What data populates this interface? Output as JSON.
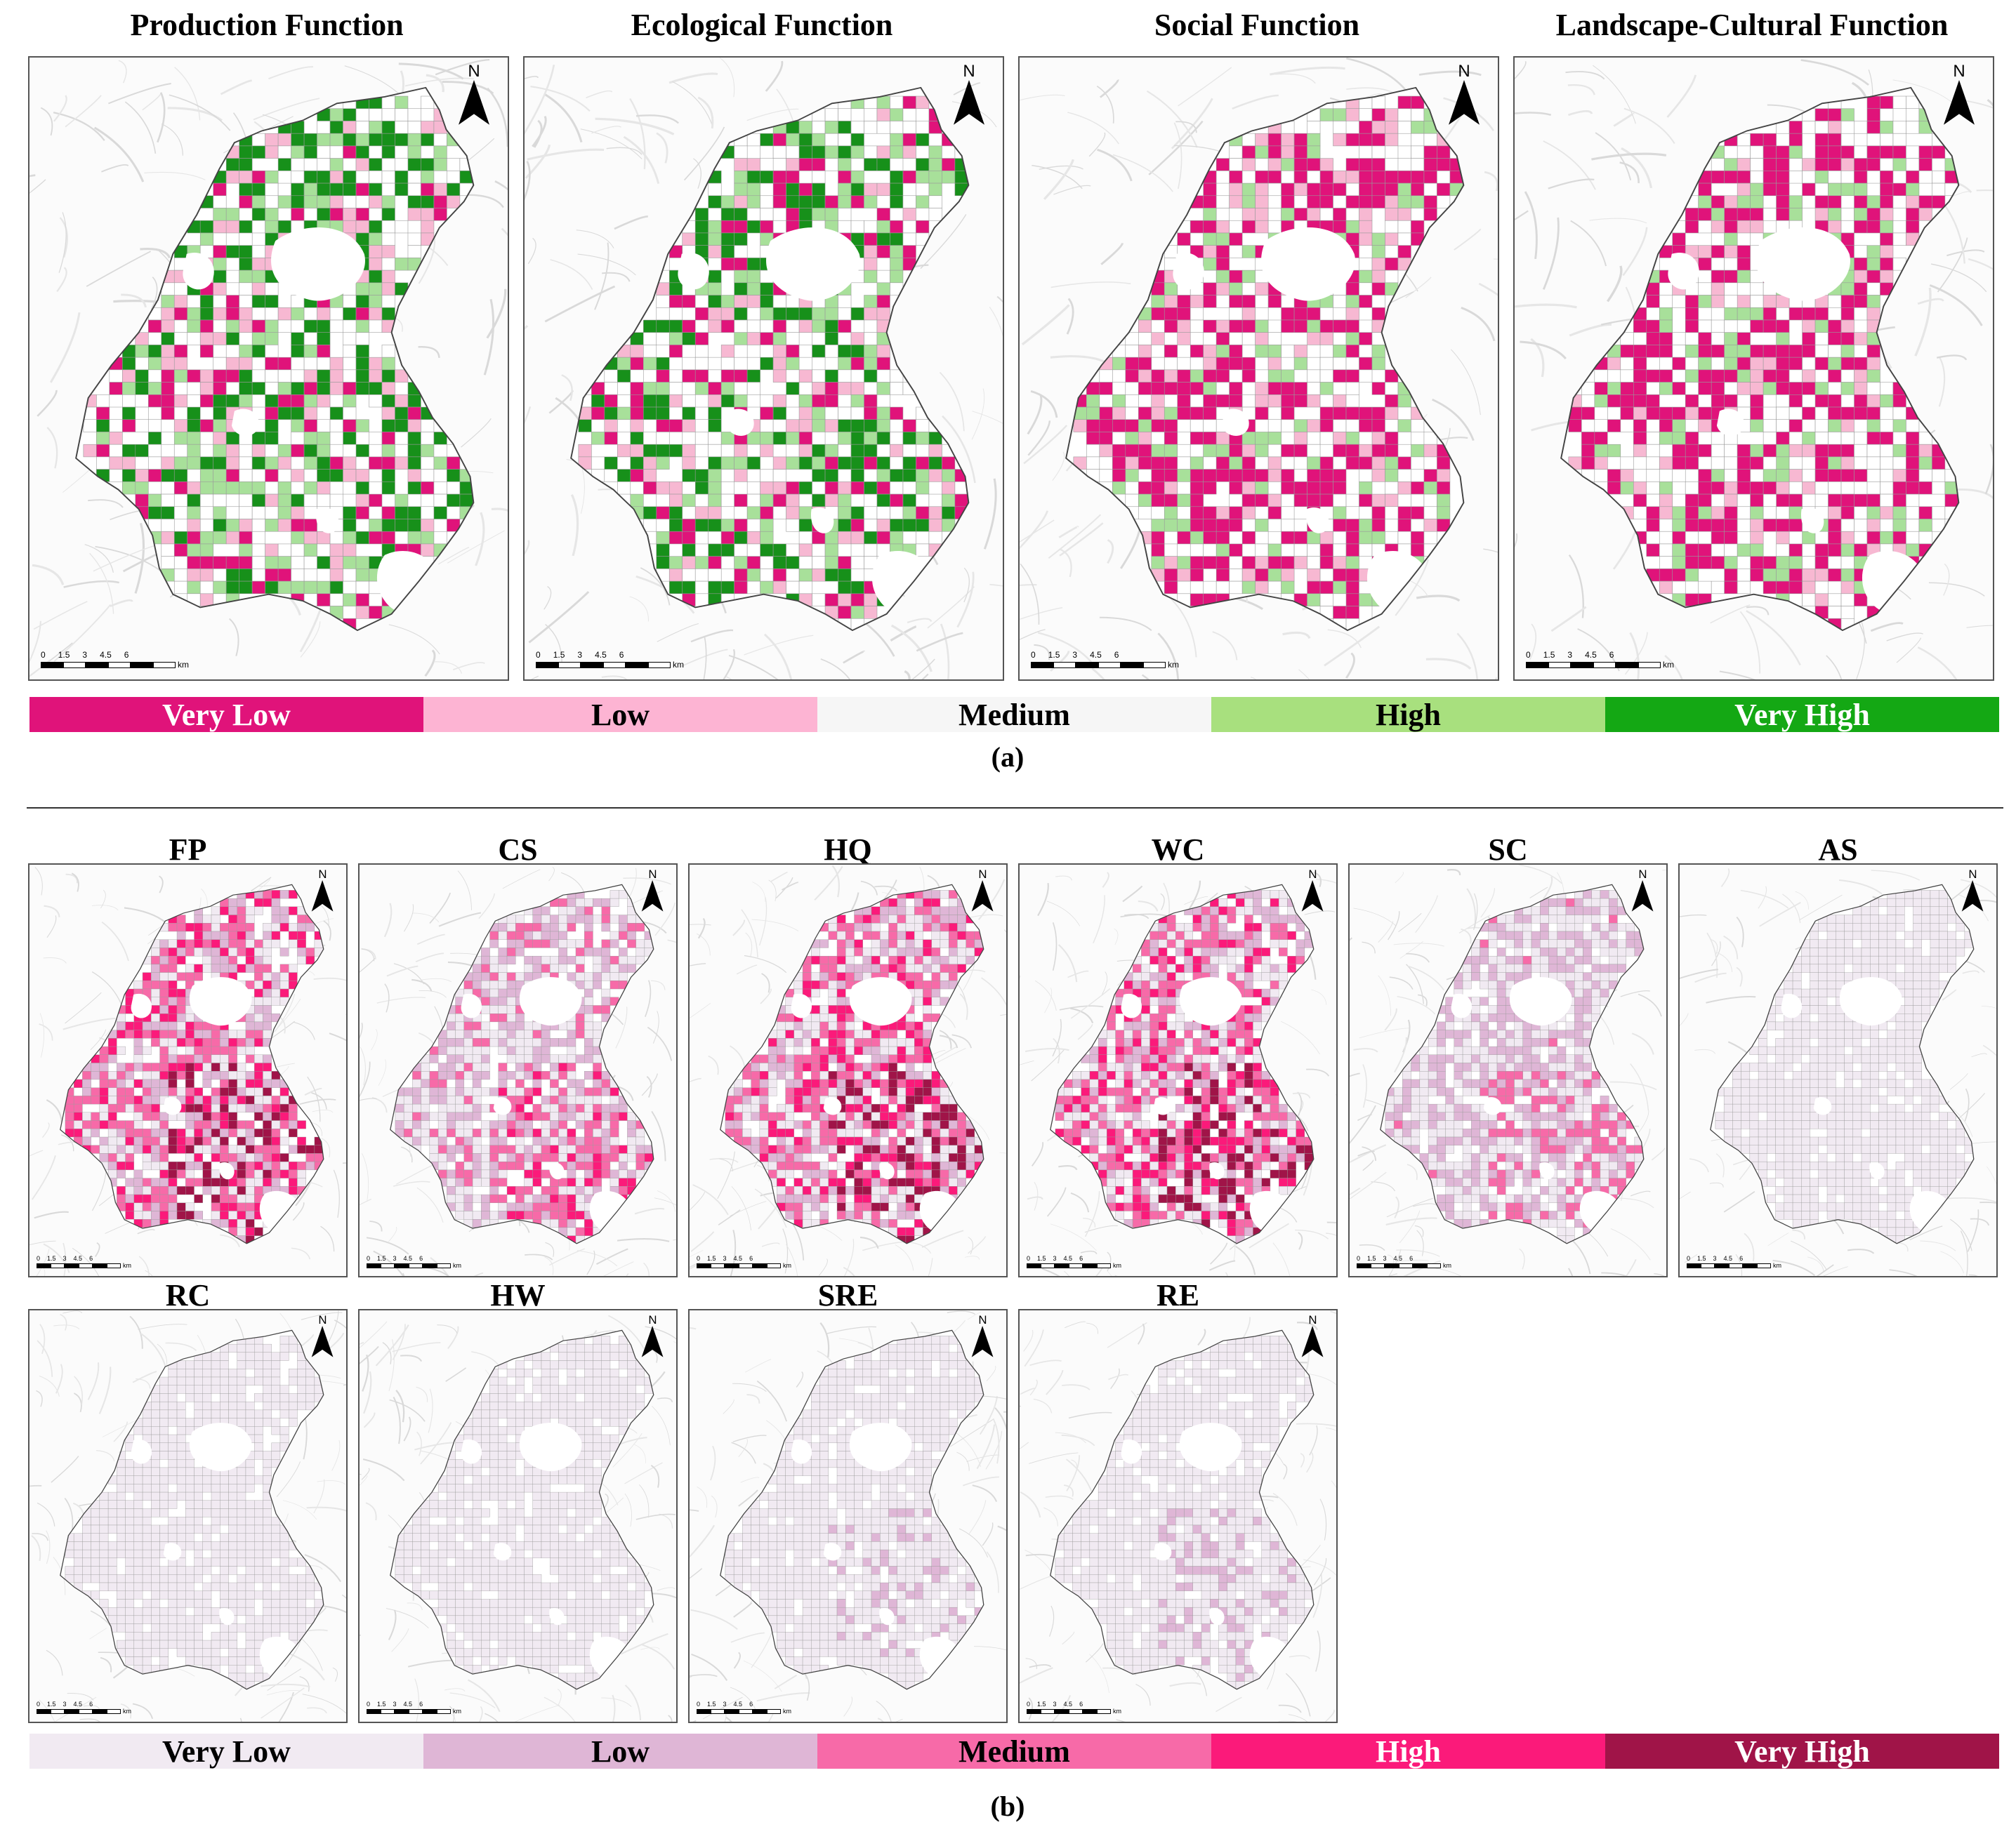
{
  "part_a": {
    "panels": [
      {
        "title": "Production Function",
        "palette": [
          "#17901a",
          "#a8e09a",
          "#e0137a",
          "#f7b8d2"
        ]
      },
      {
        "title": "Ecological Function",
        "palette": [
          "#17901a",
          "#a8e09a",
          "#f7b8d2",
          "#e0137a"
        ]
      },
      {
        "title": "Social Function",
        "palette": [
          "#e0137a",
          "#e0137a",
          "#f7b8d2",
          "#a8e09a"
        ]
      },
      {
        "title": "Landscape-Cultural Function",
        "palette": [
          "#e0137a",
          "#e0137a",
          "#f7b8d2",
          "#a8e09a"
        ]
      }
    ],
    "legend": [
      {
        "label": "Very Low",
        "color": "#e0137a",
        "text_color": "#ffffff"
      },
      {
        "label": "Low",
        "color": "#fdb4d3",
        "text_color": "#000000"
      },
      {
        "label": "Medium",
        "color": "#f6f6f6",
        "text_color": "#000000"
      },
      {
        "label": "High",
        "color": "#a8e07e",
        "text_color": "#000000"
      },
      {
        "label": "Very High",
        "color": "#14a814",
        "text_color": "#ffffff"
      }
    ],
    "caption": "(a)"
  },
  "part_b": {
    "panels": [
      {
        "title": "FP",
        "intensity": 0.85
      },
      {
        "title": "CS",
        "intensity": 0.55
      },
      {
        "title": "HQ",
        "intensity": 0.85
      },
      {
        "title": "WC",
        "intensity": 0.85
      },
      {
        "title": "SC",
        "intensity": 0.45
      },
      {
        "title": "AS",
        "intensity": 0.15
      },
      {
        "title": "RC",
        "intensity": 0.15
      },
      {
        "title": "HW",
        "intensity": 0.15
      },
      {
        "title": "SRE",
        "intensity": 0.18
      },
      {
        "title": "RE",
        "intensity": 0.22
      }
    ],
    "legend": [
      {
        "label": "Very Low",
        "color": "#f1eaf2",
        "text_color": "#000000"
      },
      {
        "label": "Low",
        "color": "#dfb6d6",
        "text_color": "#000000"
      },
      {
        "label": "Medium",
        "color": "#f76aa8",
        "text_color": "#000000"
      },
      {
        "label": "High",
        "color": "#fb1a7a",
        "text_color": "#ffffff"
      },
      {
        "label": "Very High",
        "color": "#a01448",
        "text_color": "#ffffff"
      }
    ],
    "caption": "(b)"
  },
  "north_label": "N",
  "scale_bar": {
    "ticks": [
      "0",
      "1.5",
      "3",
      "4.5",
      "6"
    ],
    "unit": "km"
  }
}
